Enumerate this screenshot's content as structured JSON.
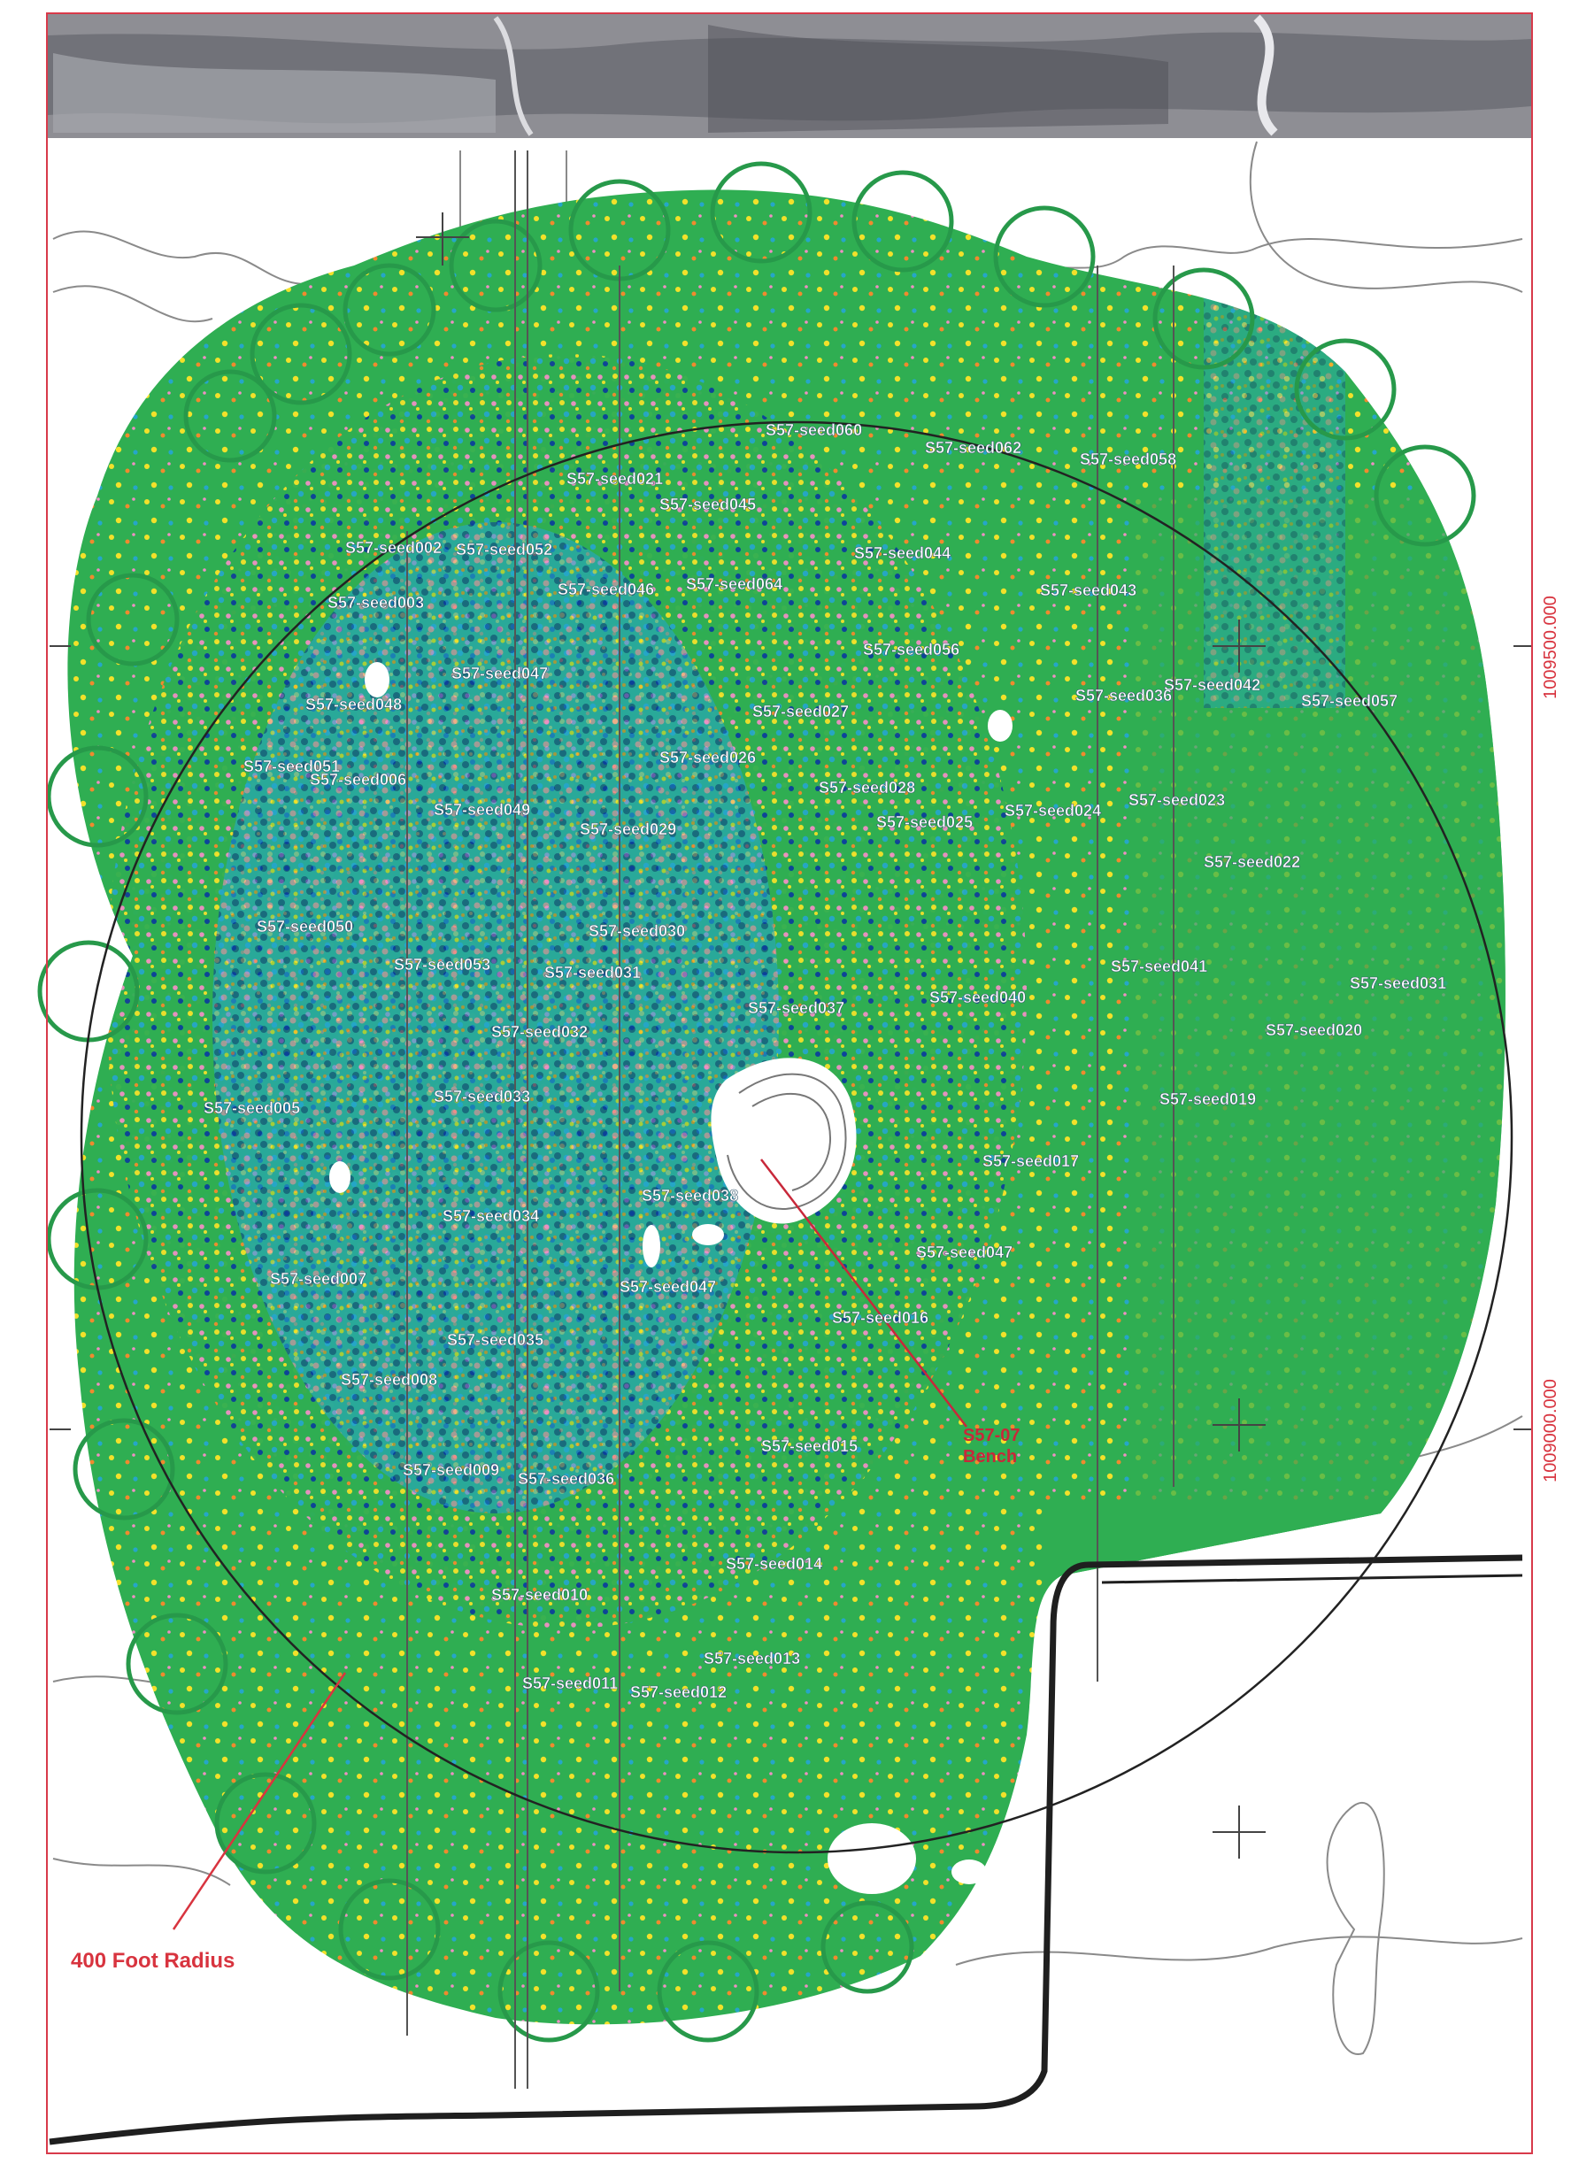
{
  "axis_labels": {
    "northing_top": "1009500.000",
    "northing_bottom": "1009000.000"
  },
  "annotations": {
    "radius_label": "400 Foot Radius",
    "benchmark_label_line1": "S57-07",
    "benchmark_label_line2": "Bench"
  },
  "seed_labels": [
    "S57-seed060",
    "S57-seed062",
    "S57-seed058",
    "S57-seed021",
    "S57-seed045",
    "S57-seed002",
    "S57-seed052",
    "S57-seed044",
    "S57-seed003",
    "S57-seed046",
    "S57-seed064",
    "S57-seed043",
    "S57-seed056",
    "S57-seed047",
    "S57-seed042",
    "S57-seed036",
    "S57-seed057",
    "S57-seed048",
    "S57-seed027",
    "S57-seed051",
    "S57-seed006",
    "S57-seed026",
    "S57-seed028",
    "S57-seed024",
    "S57-seed023",
    "S57-seed049",
    "S57-seed029",
    "S57-seed025",
    "S57-seed022",
    "S57-seed050",
    "S57-seed030",
    "S57-seed053",
    "S57-seed031",
    "S57-seed041",
    "S57-seed037",
    "S57-seed040",
    "S57-seed031",
    "S57-seed032",
    "S57-seed020",
    "S57-seed033",
    "S57-seed019",
    "S57-seed005",
    "S57-seed038",
    "S57-seed017",
    "S57-seed034",
    "S57-seed047",
    "S57-seed007",
    "S57-seed047",
    "S57-seed016",
    "S57-seed035",
    "S57-seed008",
    "S57-seed015",
    "S57-seed009",
    "S57-seed036",
    "S57-seed014",
    "S57-seed010",
    "S57-seed013",
    "S57-seed011",
    "S57-seed012"
  ],
  "colors": {
    "frame": "#d83a4a",
    "radius_label": "#d8343f",
    "background_green": "#2fae52",
    "yellow": "#f2e12a",
    "orange": "#f08a2e",
    "pink": "#ef8fc4",
    "light_blue": "#25a6c8",
    "dark_blue": "#0b3f9a",
    "seed_label": "#ffffff"
  }
}
